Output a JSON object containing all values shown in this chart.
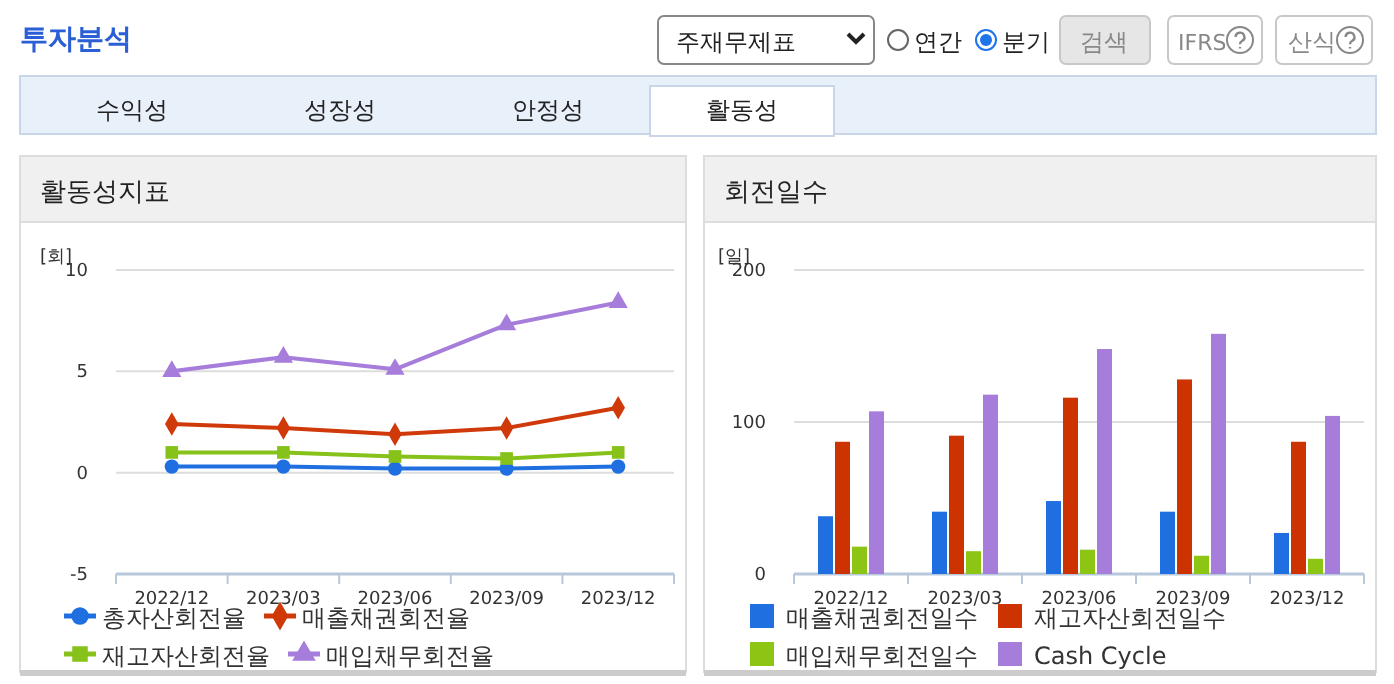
{
  "chart_data": [
    {
      "type": "other",
      "title": "투자분석",
      "annotations": [
        "주재무제표",
        "연간",
        "분기",
        "검색",
        "IFRS",
        "산식",
        "수익성",
        "성장성",
        "안정성",
        "활동성"
      ]
    },
    {
      "type": "line",
      "title": "활동성지표",
      "ylabel": "[회]",
      "categories": [
        "2022/12",
        "2023/03",
        "2023/06",
        "2023/09",
        "2023/12"
      ],
      "ylim": [
        -5,
        10
      ],
      "yticks": [
        -5,
        0,
        5,
        10
      ],
      "grid": "y",
      "legend": "bottom",
      "series": [
        {
          "name": "총자산회전율",
          "color": "#1f6fe0",
          "marker": "circle",
          "values": [
            0.3,
            0.3,
            0.2,
            0.2,
            0.3
          ]
        },
        {
          "name": "매출채권회전율",
          "color": "#d03a0a",
          "marker": "diamond",
          "values": [
            2.4,
            2.2,
            1.9,
            2.2,
            3.2
          ]
        },
        {
          "name": "재고자산회전율",
          "color": "#86c21a",
          "marker": "square",
          "values": [
            1.0,
            1.0,
            0.8,
            0.7,
            1.0
          ]
        },
        {
          "name": "매입채무회전율",
          "color": "#a67ddb",
          "marker": "triangle",
          "values": [
            5.0,
            5.7,
            5.1,
            7.3,
            8.4
          ]
        }
      ]
    },
    {
      "type": "bar",
      "title": "회전일수",
      "ylabel": "[일]",
      "categories": [
        "2022/12",
        "2023/03",
        "2023/06",
        "2023/09",
        "2023/12"
      ],
      "ylim": [
        0,
        200
      ],
      "yticks": [
        0,
        100,
        200
      ],
      "grid": "y",
      "legend": "bottom",
      "series": [
        {
          "name": "매출채권회전일수",
          "color": "#1f6fe0",
          "values": [
            38,
            41,
            48,
            41,
            27
          ]
        },
        {
          "name": "재고자산회전일수",
          "color": "#cc3300",
          "values": [
            87,
            91,
            116,
            128,
            87
          ]
        },
        {
          "name": "매입채무회전일수",
          "color": "#8cc514",
          "values": [
            18,
            15,
            16,
            12,
            10
          ]
        },
        {
          "name": "Cash Cycle",
          "color": "#a67ddb",
          "values": [
            107,
            118,
            148,
            158,
            104
          ]
        }
      ]
    }
  ]
}
